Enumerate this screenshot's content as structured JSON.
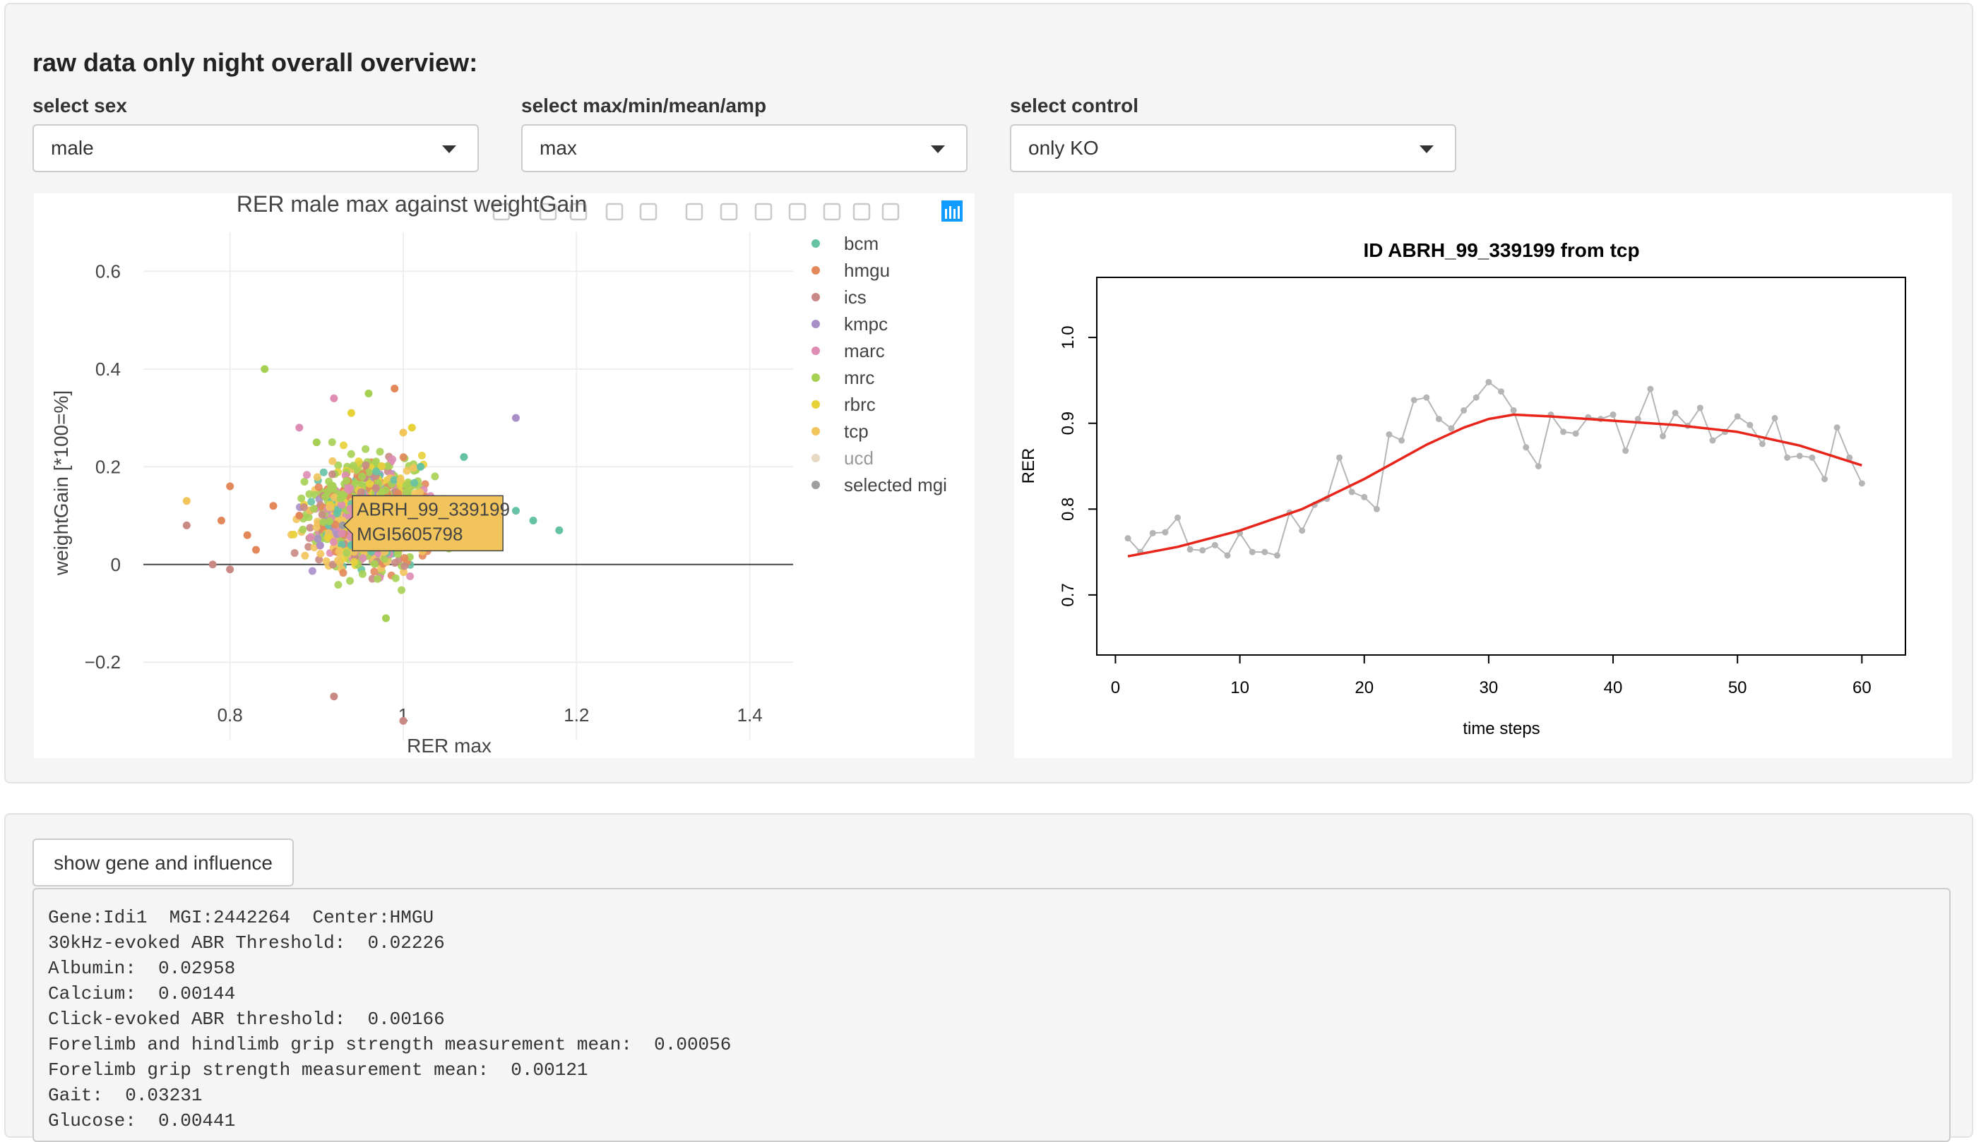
{
  "section_title": "raw data only night overall overview:",
  "controls": [
    {
      "label": "select sex",
      "value": "male"
    },
    {
      "label": "select max/min/mean/amp",
      "value": "max"
    },
    {
      "label": "select control",
      "value": "only KO"
    }
  ],
  "colors": {
    "bcm": "#66c2a5",
    "hmgu": "#e3885b",
    "ics": "#c98a85",
    "kmpc": "#a98fc8",
    "marc": "#de8cb4",
    "mrc": "#a6d054",
    "rbrc": "#e8d23a",
    "tcp": "#f2c45c",
    "ucd": "#e8d9c2",
    "selected mgi": "#9e9e9e",
    "fit_line": "#e8251b",
    "raw_line": "#b5b5b5"
  },
  "toolbar_icons": [
    "camera-icon",
    "zoom-icon",
    "pan-icon",
    "box-select-icon",
    "lasso-select-icon",
    "zoom-in-icon",
    "zoom-out-icon",
    "autoscale-icon",
    "reset-axes-icon",
    "spike-lines-icon",
    "hover-closest-icon",
    "hover-compare-icon",
    "plotly-logo-icon"
  ],
  "hover": {
    "line1": "ABRH_99_339199",
    "line2": "MGI5605798"
  },
  "chart_data": [
    {
      "type": "scatter",
      "title": "RER male max against weightGain",
      "xlabel": "RER max",
      "ylabel": "weightGain [*100=%]",
      "xlim": [
        0.7,
        1.45
      ],
      "ylim": [
        -0.36,
        0.68
      ],
      "xticks": [
        "0.8",
        "1",
        "1.2",
        "1.4"
      ],
      "yticks": [
        "0.6",
        "0.4",
        "0.2",
        "0",
        "−0.2"
      ],
      "legend_position": "right",
      "series": [
        {
          "name": "bcm",
          "points": [
            [
              1.18,
              0.07
            ],
            [
              1.15,
              0.09
            ],
            [
              1.07,
              0.22
            ],
            [
              1.13,
              0.11
            ],
            [
              1.02,
              0.2
            ],
            [
              0.94,
              0.04
            ]
          ]
        },
        {
          "name": "hmgu",
          "points": [
            [
              0.79,
              0.09
            ],
            [
              0.8,
              0.16
            ],
            [
              0.82,
              0.06
            ],
            [
              0.85,
              0.12
            ],
            [
              0.88,
              0.1
            ],
            [
              0.99,
              0.36
            ],
            [
              0.83,
              0.03
            ]
          ]
        },
        {
          "name": "ics",
          "points": [
            [
              0.92,
              -0.27
            ],
            [
              1.0,
              -0.32
            ],
            [
              0.78,
              0.0
            ],
            [
              0.75,
              0.08
            ],
            [
              0.8,
              -0.01
            ]
          ]
        },
        {
          "name": "kmpc",
          "points": [
            [
              1.13,
              0.3
            ]
          ]
        },
        {
          "name": "marc",
          "points": [
            [
              0.92,
              0.34
            ],
            [
              0.88,
              0.28
            ]
          ]
        },
        {
          "name": "mrc",
          "points": [
            [
              0.84,
              0.4
            ],
            [
              0.96,
              0.35
            ],
            [
              0.98,
              -0.11
            ],
            [
              0.9,
              0.25
            ]
          ]
        },
        {
          "name": "rbrc",
          "points": [
            [
              0.94,
              0.31
            ],
            [
              1.01,
              0.28
            ]
          ]
        },
        {
          "name": "tcp",
          "points": [
            [
              0.75,
              0.13
            ],
            [
              0.93,
              0.09
            ],
            [
              1.0,
              0.27
            ]
          ]
        },
        {
          "name": "ucd",
          "points": []
        },
        {
          "name": "selected mgi",
          "points": [
            [
              0.93,
              0.08
            ]
          ]
        }
      ]
    },
    {
      "type": "line",
      "title": "ID ABRH_99_339199 from tcp",
      "xlabel": "time steps",
      "ylabel": "RER",
      "xlim": [
        -1.5,
        63.5
      ],
      "ylim": [
        0.63,
        1.07
      ],
      "xticks": [
        "0",
        "10",
        "20",
        "30",
        "40",
        "50",
        "60"
      ],
      "yticks": [
        "0.7",
        "0.8",
        "0.9",
        "1.0"
      ],
      "series": [
        {
          "name": "raw",
          "x": [
            1,
            2,
            3,
            4,
            5,
            6,
            7,
            8,
            9,
            10,
            11,
            12,
            13,
            14,
            15,
            16,
            17,
            18,
            19,
            20,
            21,
            22,
            23,
            24,
            25,
            26,
            27,
            28,
            29,
            30,
            31,
            32,
            33,
            34,
            35,
            36,
            37,
            38,
            39,
            40,
            41,
            42,
            43,
            44,
            45,
            46,
            47,
            48,
            49,
            50,
            51,
            52,
            53,
            54,
            55,
            56,
            57,
            58,
            59,
            60
          ],
          "y": [
            0.766,
            0.75,
            0.772,
            0.773,
            0.79,
            0.753,
            0.752,
            0.758,
            0.746,
            0.772,
            0.75,
            0.75,
            0.746,
            0.796,
            0.775,
            0.805,
            0.812,
            0.86,
            0.82,
            0.814,
            0.8,
            0.887,
            0.88,
            0.927,
            0.93,
            0.905,
            0.894,
            0.915,
            0.93,
            0.948,
            0.937,
            0.915,
            0.872,
            0.85,
            0.91,
            0.89,
            0.888,
            0.907,
            0.905,
            0.91,
            0.868,
            0.905,
            0.94,
            0.885,
            0.912,
            0.897,
            0.918,
            0.88,
            0.89,
            0.908,
            0.898,
            0.876,
            0.906,
            0.86,
            0.862,
            0.86,
            0.835,
            0.895,
            0.86,
            0.83
          ]
        },
        {
          "name": "fit",
          "x": [
            1,
            5,
            10,
            15,
            20,
            25,
            28,
            30,
            32,
            35,
            40,
            45,
            50,
            55,
            60
          ],
          "y": [
            0.745,
            0.756,
            0.775,
            0.8,
            0.835,
            0.875,
            0.895,
            0.905,
            0.91,
            0.908,
            0.903,
            0.898,
            0.89,
            0.874,
            0.851
          ]
        }
      ]
    }
  ],
  "button_label": "show gene and influence",
  "results_lines": [
    "Gene:Idi1  MGI:2442264  Center:HMGU",
    "30kHz-evoked ABR Threshold:  0.02226",
    "Albumin:  0.02958",
    "Calcium:  0.00144",
    "Click-evoked ABR threshold:  0.00166",
    "Forelimb and hindlimb grip strength measurement mean:  0.00056",
    "Forelimb grip strength measurement mean:  0.00121",
    "Gait:  0.03231",
    "Glucose:  0.00441"
  ]
}
